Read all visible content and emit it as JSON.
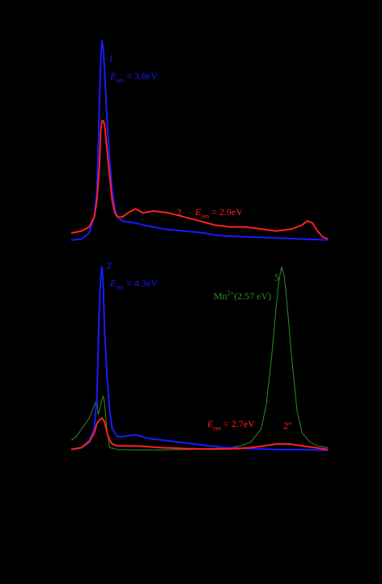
{
  "chart_data": [
    {
      "type": "line",
      "panel": "top",
      "xlim": [
        0,
        1
      ],
      "series": [
        {
          "id": "1",
          "color": "#1a1aff",
          "points": [
            [
              0.0,
              0.005
            ],
            [
              0.04,
              0.01
            ],
            [
              0.07,
              0.04
            ],
            [
              0.09,
              0.12
            ],
            [
              0.1,
              0.25
            ],
            [
              0.105,
              0.45
            ],
            [
              0.11,
              0.7
            ],
            [
              0.115,
              0.9
            ],
            [
              0.12,
              1.0
            ],
            [
              0.125,
              0.96
            ],
            [
              0.13,
              0.85
            ],
            [
              0.14,
              0.6
            ],
            [
              0.15,
              0.4
            ],
            [
              0.16,
              0.25
            ],
            [
              0.17,
              0.16
            ],
            [
              0.18,
              0.12
            ],
            [
              0.2,
              0.1
            ],
            [
              0.22,
              0.095
            ],
            [
              0.25,
              0.09
            ],
            [
              0.28,
              0.08
            ],
            [
              0.32,
              0.07
            ],
            [
              0.36,
              0.06
            ],
            [
              0.4,
              0.055
            ],
            [
              0.44,
              0.05
            ],
            [
              0.48,
              0.045
            ],
            [
              0.52,
              0.04
            ],
            [
              0.56,
              0.03
            ],
            [
              0.6,
              0.025
            ],
            [
              0.7,
              0.02
            ],
            [
              0.8,
              0.015
            ],
            [
              0.9,
              0.01
            ],
            [
              0.95,
              0.008
            ],
            [
              1.0,
              0.005
            ]
          ]
        },
        {
          "id": "2",
          "color": "#ff2020",
          "points": [
            [
              0.0,
              0.04
            ],
            [
              0.04,
              0.05
            ],
            [
              0.07,
              0.07
            ],
            [
              0.09,
              0.12
            ],
            [
              0.1,
              0.2
            ],
            [
              0.11,
              0.38
            ],
            [
              0.115,
              0.55
            ],
            [
              0.12,
              0.6
            ],
            [
              0.125,
              0.6
            ],
            [
              0.13,
              0.58
            ],
            [
              0.14,
              0.45
            ],
            [
              0.15,
              0.32
            ],
            [
              0.16,
              0.2
            ],
            [
              0.17,
              0.14
            ],
            [
              0.18,
              0.12
            ],
            [
              0.2,
              0.12
            ],
            [
              0.22,
              0.14
            ],
            [
              0.25,
              0.16
            ],
            [
              0.28,
              0.14
            ],
            [
              0.32,
              0.15
            ],
            [
              0.38,
              0.14
            ],
            [
              0.44,
              0.12
            ],
            [
              0.5,
              0.1
            ],
            [
              0.56,
              0.08
            ],
            [
              0.62,
              0.07
            ],
            [
              0.68,
              0.07
            ],
            [
              0.74,
              0.06
            ],
            [
              0.8,
              0.05
            ],
            [
              0.86,
              0.06
            ],
            [
              0.9,
              0.08
            ],
            [
              0.92,
              0.1
            ],
            [
              0.94,
              0.09
            ],
            [
              0.96,
              0.05
            ],
            [
              0.98,
              0.02
            ],
            [
              1.0,
              0.01
            ]
          ]
        }
      ],
      "annotations": [
        {
          "id": "label-1",
          "text": "1",
          "color": "#1a1aff"
        },
        {
          "id": "label-em-1",
          "text_main": "E",
          "text_sub": "em",
          "text_rest": " = 3.8eV",
          "color": "#1a1aff"
        },
        {
          "id": "label-2",
          "text": "2",
          "color": "#ff2020"
        },
        {
          "id": "label-em-2",
          "text_main": "E",
          "text_sub": "em",
          "text_rest": " = 2.9eV",
          "color": "#ff2020"
        }
      ]
    },
    {
      "type": "line",
      "panel": "bottom",
      "xlim": [
        0,
        1
      ],
      "series": [
        {
          "id": "5",
          "color": "#2e8b2e",
          "points": [
            [
              0.0,
              0.06
            ],
            [
              0.02,
              0.08
            ],
            [
              0.04,
              0.12
            ],
            [
              0.07,
              0.18
            ],
            [
              0.09,
              0.25
            ],
            [
              0.1,
              0.28
            ],
            [
              0.105,
              0.2
            ],
            [
              0.11,
              0.22
            ],
            [
              0.12,
              0.28
            ],
            [
              0.125,
              0.3
            ],
            [
              0.13,
              0.26
            ],
            [
              0.14,
              0.1
            ],
            [
              0.15,
              0.02
            ],
            [
              0.18,
              0.01
            ],
            [
              0.25,
              0.008
            ],
            [
              0.35,
              0.008
            ],
            [
              0.45,
              0.01
            ],
            [
              0.55,
              0.015
            ],
            [
              0.62,
              0.02
            ],
            [
              0.66,
              0.03
            ],
            [
              0.7,
              0.05
            ],
            [
              0.74,
              0.12
            ],
            [
              0.76,
              0.25
            ],
            [
              0.78,
              0.5
            ],
            [
              0.8,
              0.8
            ],
            [
              0.81,
              0.93
            ],
            [
              0.82,
              1.0
            ],
            [
              0.83,
              0.95
            ],
            [
              0.84,
              0.82
            ],
            [
              0.86,
              0.5
            ],
            [
              0.88,
              0.22
            ],
            [
              0.9,
              0.1
            ],
            [
              0.93,
              0.05
            ],
            [
              0.96,
              0.03
            ],
            [
              1.0,
              0.02
            ]
          ]
        },
        {
          "id": "2'",
          "color": "#1a1aff",
          "points": [
            [
              0.0,
              0.01
            ],
            [
              0.04,
              0.02
            ],
            [
              0.07,
              0.06
            ],
            [
              0.09,
              0.12
            ],
            [
              0.1,
              0.3
            ],
            [
              0.105,
              0.55
            ],
            [
              0.11,
              0.8
            ],
            [
              0.115,
              0.95
            ],
            [
              0.12,
              1.0
            ],
            [
              0.125,
              0.9
            ],
            [
              0.13,
              0.65
            ],
            [
              0.14,
              0.4
            ],
            [
              0.15,
              0.22
            ],
            [
              0.16,
              0.12
            ],
            [
              0.18,
              0.08
            ],
            [
              0.2,
              0.08
            ],
            [
              0.25,
              0.09
            ],
            [
              0.3,
              0.07
            ],
            [
              0.36,
              0.06
            ],
            [
              0.42,
              0.05
            ],
            [
              0.48,
              0.04
            ],
            [
              0.54,
              0.03
            ],
            [
              0.6,
              0.02
            ],
            [
              0.7,
              0.015
            ],
            [
              0.8,
              0.01
            ],
            [
              0.9,
              0.01
            ],
            [
              1.0,
              0.005
            ]
          ]
        },
        {
          "id": "2''",
          "color": "#ff2020",
          "points": [
            [
              0.0,
              0.01
            ],
            [
              0.04,
              0.02
            ],
            [
              0.07,
              0.05
            ],
            [
              0.09,
              0.1
            ],
            [
              0.1,
              0.15
            ],
            [
              0.11,
              0.17
            ],
            [
              0.12,
              0.18
            ],
            [
              0.13,
              0.16
            ],
            [
              0.14,
              0.1
            ],
            [
              0.15,
              0.06
            ],
            [
              0.16,
              0.04
            ],
            [
              0.18,
              0.03
            ],
            [
              0.25,
              0.03
            ],
            [
              0.35,
              0.02
            ],
            [
              0.45,
              0.015
            ],
            [
              0.55,
              0.012
            ],
            [
              0.65,
              0.015
            ],
            [
              0.7,
              0.02
            ],
            [
              0.75,
              0.03
            ],
            [
              0.8,
              0.04
            ],
            [
              0.85,
              0.04
            ],
            [
              0.9,
              0.03
            ],
            [
              0.95,
              0.02
            ],
            [
              1.0,
              0.01
            ]
          ]
        }
      ],
      "annotations": [
        {
          "id": "label-2prime",
          "text": "2'",
          "color": "#1a1aff"
        },
        {
          "id": "label-em-2prime",
          "text_main": "E",
          "text_sub": "em",
          "text_rest": " = 4.3eV",
          "color": "#1a1aff"
        },
        {
          "id": "label-5",
          "text": "5",
          "color": "#2e8b2e"
        },
        {
          "id": "label-mn",
          "text_main": "Mn",
          "text_sup": "2+",
          "text_rest": "(2.57 eV)",
          "color": "#2e8b2e"
        },
        {
          "id": "label-em-2dprime",
          "text_main": "E",
          "text_sub": "em",
          "text_rest": " = 2.7eV",
          "color": "#ff2020"
        },
        {
          "id": "label-2dprime",
          "text": "2''",
          "color": "#ff2020"
        }
      ]
    }
  ]
}
